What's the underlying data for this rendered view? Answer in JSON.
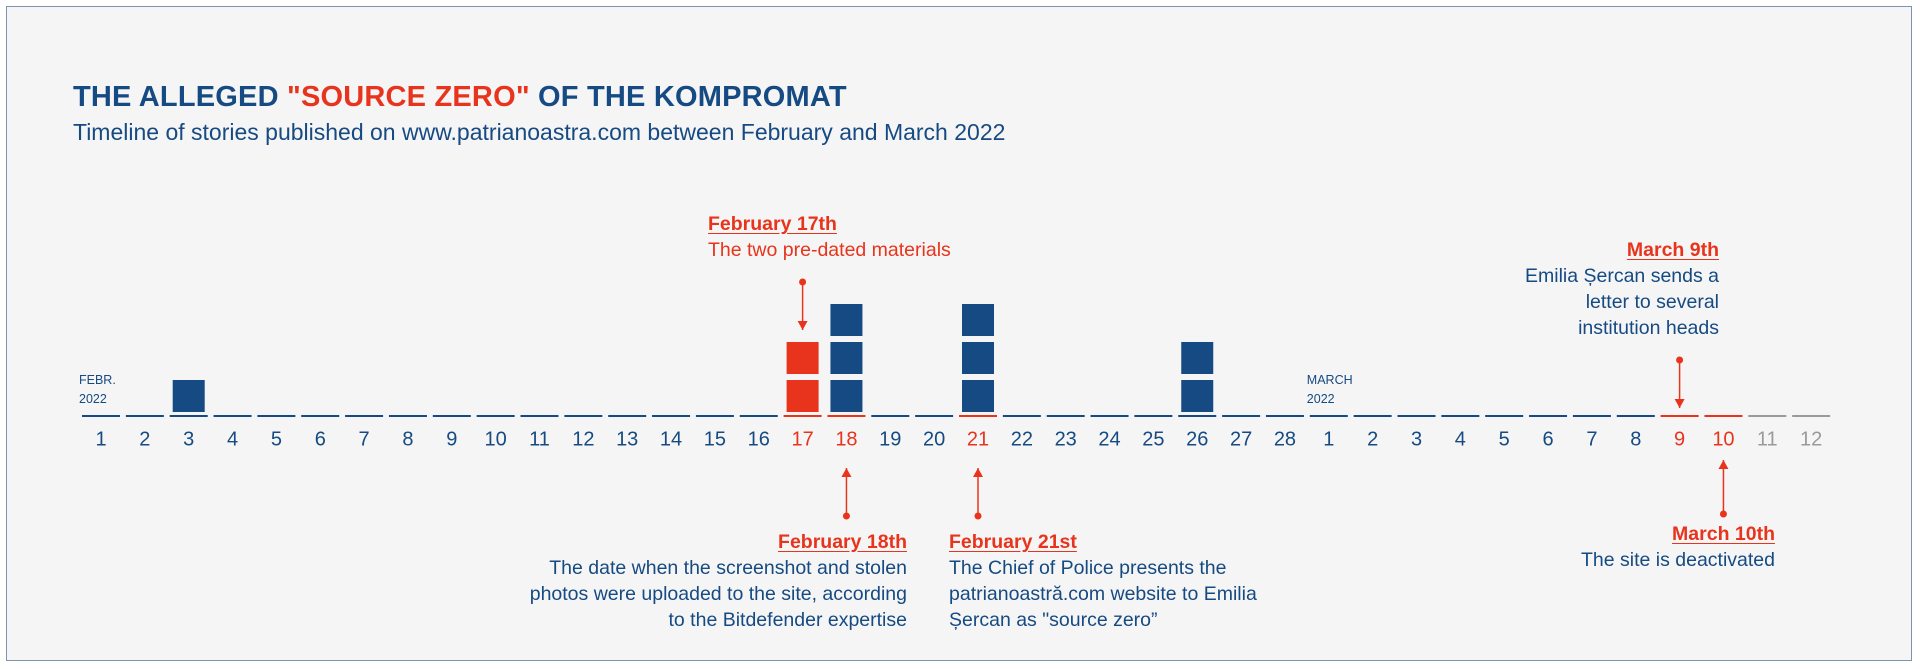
{
  "title": {
    "part1": "THE ALLEGED ",
    "highlight": "\"SOURCE ZERO\"",
    "part2": " OF THE KOMPROMAT"
  },
  "subtitle": "Timeline of stories published on www.patrianoastra.com between February and March 2022",
  "colors": {
    "blue": "#164a82",
    "red": "#e8341c",
    "gray": "#9a9a9a",
    "background": "#f5f5f5"
  },
  "chart_data": {
    "type": "bar",
    "description_x": "days of February and March 2022",
    "month_labels": [
      {
        "line1": "FEBR.",
        "line2": "2022",
        "day_index": 0
      },
      {
        "line1": "MARCH",
        "line2": "2022",
        "day_index": 28
      }
    ],
    "days": [
      {
        "label": "1",
        "stories": 0,
        "color": "blue"
      },
      {
        "label": "2",
        "stories": 0,
        "color": "blue"
      },
      {
        "label": "3",
        "stories": 1,
        "color": "blue"
      },
      {
        "label": "4",
        "stories": 0,
        "color": "blue"
      },
      {
        "label": "5",
        "stories": 0,
        "color": "blue"
      },
      {
        "label": "6",
        "stories": 0,
        "color": "blue"
      },
      {
        "label": "7",
        "stories": 0,
        "color": "blue"
      },
      {
        "label": "8",
        "stories": 0,
        "color": "blue"
      },
      {
        "label": "9",
        "stories": 0,
        "color": "blue"
      },
      {
        "label": "10",
        "stories": 0,
        "color": "blue"
      },
      {
        "label": "11",
        "stories": 0,
        "color": "blue"
      },
      {
        "label": "12",
        "stories": 0,
        "color": "blue"
      },
      {
        "label": "13",
        "stories": 0,
        "color": "blue"
      },
      {
        "label": "14",
        "stories": 0,
        "color": "blue"
      },
      {
        "label": "15",
        "stories": 0,
        "color": "blue"
      },
      {
        "label": "16",
        "stories": 0,
        "color": "blue"
      },
      {
        "label": "17",
        "stories": 2,
        "color": "red"
      },
      {
        "label": "18",
        "stories": 3,
        "color": "red"
      },
      {
        "label": "19",
        "stories": 0,
        "color": "blue"
      },
      {
        "label": "20",
        "stories": 0,
        "color": "blue"
      },
      {
        "label": "21",
        "stories": 3,
        "color": "red"
      },
      {
        "label": "22",
        "stories": 0,
        "color": "blue"
      },
      {
        "label": "23",
        "stories": 0,
        "color": "blue"
      },
      {
        "label": "24",
        "stories": 0,
        "color": "blue"
      },
      {
        "label": "25",
        "stories": 0,
        "color": "blue"
      },
      {
        "label": "26",
        "stories": 2,
        "color": "blue"
      },
      {
        "label": "27",
        "stories": 0,
        "color": "blue"
      },
      {
        "label": "28",
        "stories": 0,
        "color": "blue"
      },
      {
        "label": "1",
        "stories": 0,
        "color": "blue"
      },
      {
        "label": "2",
        "stories": 0,
        "color": "blue"
      },
      {
        "label": "3",
        "stories": 0,
        "color": "blue"
      },
      {
        "label": "4",
        "stories": 0,
        "color": "blue"
      },
      {
        "label": "5",
        "stories": 0,
        "color": "blue"
      },
      {
        "label": "6",
        "stories": 0,
        "color": "blue"
      },
      {
        "label": "7",
        "stories": 0,
        "color": "blue"
      },
      {
        "label": "8",
        "stories": 0,
        "color": "blue"
      },
      {
        "label": "9",
        "stories": 0,
        "color": "red"
      },
      {
        "label": "10",
        "stories": 0,
        "color": "red"
      },
      {
        "label": "11",
        "stories": 0,
        "color": "gray"
      },
      {
        "label": "12",
        "stories": 0,
        "color": "gray"
      }
    ],
    "bar_colors": {
      "17": [
        "red",
        "red"
      ],
      "18": [
        "blue",
        "blue",
        "blue"
      ],
      "21": [
        "blue",
        "blue",
        "blue"
      ]
    }
  },
  "annotations": {
    "feb17": {
      "heading": "February 17th",
      "text": "The two pre-dated materials"
    },
    "feb18": {
      "heading": "February 18th",
      "lines": [
        "The date when the screenshot and stolen",
        "photos were uploaded to the site, according",
        "to the Bitdefender expertise"
      ]
    },
    "feb21": {
      "heading": "February 21st",
      "lines": [
        "The Chief of Police presents the",
        "patrianoastră.com website to Emilia",
        "Șercan as \"source zero”"
      ]
    },
    "mar9": {
      "heading": "March 9th",
      "lines": [
        "Emilia Șercan sends a",
        "letter to several",
        "institution heads"
      ]
    },
    "mar10": {
      "heading": "March 10th",
      "text": "The site is deactivated"
    }
  }
}
